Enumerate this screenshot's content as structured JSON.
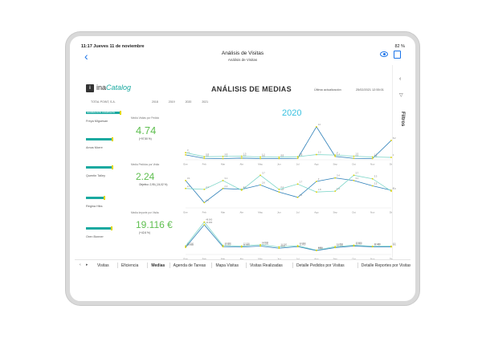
{
  "status": {
    "time": "11:17  Jueves 11 de noviembre",
    "battery": "82 %"
  },
  "nav": {
    "title": "Análisis de Visitas",
    "subtitle": "Análisis de Visitas"
  },
  "report": {
    "logo_text_1": "ina",
    "logo_text_2": "Catalog",
    "logo_mark": "i",
    "title": "ANÁLISIS DE MEDIAS",
    "update_label": "Última actualización",
    "update_value": "25/02/2021 12:55:01",
    "company": "TOTAL POINT, S.A.",
    "years": [
      "2018",
      "2019",
      "2020",
      "2021"
    ],
    "selected_year": "2020"
  },
  "people": [
    {
      "name": "Freya Miguesan",
      "tag": "GRABACIÓN COMPLETA",
      "fill": 0.95
    },
    {
      "name": "Amos Morre",
      "tag": "",
      "fill": 0.72
    },
    {
      "name": "Quentin Talley",
      "tag": "",
      "fill": 0.72
    },
    {
      "name": "Regina Hiks",
      "tag": "",
      "fill": 0.5
    },
    {
      "name": "Oren Bonner",
      "tag": "",
      "fill": 0.7
    }
  ],
  "kpis": [
    {
      "label": "Media Visitas por Pedido",
      "value": "4.74",
      "delta": "(+97,50 %)"
    },
    {
      "label": "Media Pedidos por Visita",
      "value": "2.24",
      "delta": "Objetivo: 2,95 (-24,02 %)"
    },
    {
      "label": "Media Importe por Visita",
      "value": "19.116 €",
      "delta": "(+42,6 %)"
    }
  ],
  "chart_data": [
    {
      "type": "line",
      "x": [
        "Ene",
        "Feb",
        "Mar",
        "Abr",
        "May",
        "Jun",
        "Jul",
        "Ago",
        "Sep",
        "Oct",
        "Nov",
        "Dic"
      ],
      "series": [
        {
          "values": [
            2.1,
            0.6,
            0.5,
            0.7,
            0.5,
            0.5,
            0.6,
            14.0,
            1.4,
            0.6,
            0.5,
            8.2
          ]
        },
        {
          "values": [
            3.0,
            1.3,
            1.4,
            1.5,
            1.2,
            1.1,
            1.3,
            2.2,
            2.0,
            1.5,
            1.2,
            1.0
          ]
        }
      ],
      "ylim": [
        0,
        15
      ],
      "color_a": "#2c7fb8",
      "color_b": "#7fd6c9"
    },
    {
      "type": "line",
      "x": [
        "Ene",
        "Feb",
        "Mar",
        "Abr",
        "May",
        "Jun",
        "Jul",
        "Ago",
        "Sep",
        "Oct",
        "Nov",
        "Dic"
      ],
      "series": [
        {
          "values": [
            3.1,
            0.6,
            2.2,
            2.1,
            2.6,
            1.8,
            1.2,
            3.0,
            3.4,
            3.1,
            2.5,
            2.0
          ]
        },
        {
          "values": [
            2.2,
            2.1,
            3.1,
            2.0,
            3.7,
            2.1,
            2.7,
            1.8,
            1.9,
            3.7,
            3.3,
            1.9
          ]
        }
      ],
      "ylim": [
        0,
        4
      ],
      "color_a": "#2c7fb8",
      "color_b": "#7fd6c9"
    },
    {
      "type": "line",
      "x": [
        "Ene",
        "Feb",
        "Mar",
        "Abr",
        "May",
        "Jun",
        "Jul",
        "Ago",
        "Sep",
        "Oct",
        "Nov",
        "Dic"
      ],
      "series": [
        {
          "values": [
            12500,
            48000,
            13300,
            12500,
            14500,
            11200,
            13000,
            6300,
            11800,
            13800,
            12200,
            12300
          ]
        },
        {
          "values": [
            10500,
            44000,
            11500,
            11000,
            12500,
            9200,
            11600,
            5800,
            10200,
            12600,
            11400,
            11200
          ]
        }
      ],
      "ylim": [
        0,
        50000
      ],
      "color_a": "#7fd6c9",
      "color_b": "#2c7fb8"
    }
  ],
  "tabs": {
    "items": [
      "Visitas",
      "Eficiencia",
      "Medias",
      "Agenda de Tareas",
      "Mapa Visitas",
      "Visitas Realizadas",
      "Detalle Pedidos por Visitas",
      "Detalle Reportes por Visitas"
    ],
    "active": "Medias"
  },
  "filters": {
    "label": "Filtros"
  }
}
